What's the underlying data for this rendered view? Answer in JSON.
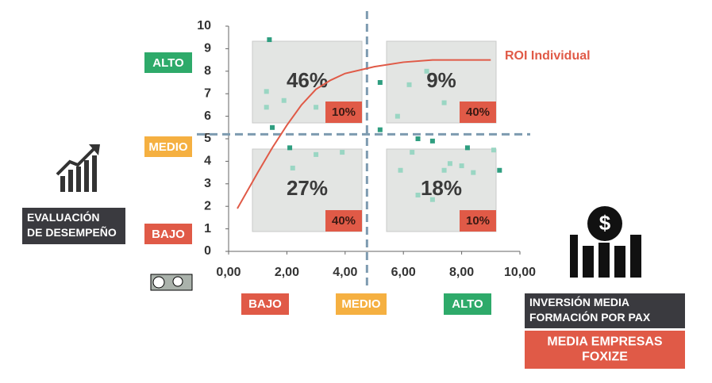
{
  "chart_data": {
    "type": "scatter",
    "xlim": [
      0,
      10
    ],
    "ylim": [
      0,
      10
    ],
    "xticks": [
      {
        "value": 0,
        "label": "0,00"
      },
      {
        "value": 2,
        "label": "2,00"
      },
      {
        "value": 4,
        "label": "4,00"
      },
      {
        "value": 6,
        "label": "6,00"
      },
      {
        "value": 8,
        "label": "8,00"
      },
      {
        "value": 10,
        "label": "10,00"
      }
    ],
    "yticks": [
      0,
      1,
      2,
      3,
      4,
      5,
      6,
      7,
      8,
      9,
      10
    ],
    "series": [
      {
        "color": "#2f9e80",
        "x": [
          1.4,
          1.5,
          2.1,
          5.2,
          5.2,
          6.5,
          7.0,
          8.2,
          9.3
        ],
        "values": [
          9.4,
          5.5,
          4.6,
          7.5,
          5.4,
          5.0,
          4.9,
          4.6,
          3.6
        ]
      },
      {
        "color": "#9ad6c3",
        "x": [
          1.3,
          1.3,
          1.9,
          3.0,
          2.2,
          3.0,
          3.9,
          5.8,
          6.2,
          6.8,
          7.4,
          6.3,
          5.9,
          6.5,
          7.0,
          7.4,
          7.6,
          8.0,
          8.4,
          9.1
        ],
        "values": [
          7.1,
          6.4,
          6.7,
          6.4,
          3.7,
          4.3,
          4.4,
          6.0,
          7.4,
          8.0,
          6.6,
          4.4,
          3.6,
          2.5,
          2.3,
          3.6,
          3.9,
          3.8,
          3.5,
          4.5
        ]
      }
    ],
    "curve": {
      "name": "ROI Individual",
      "color": "#e05a47",
      "x": [
        0.3,
        1,
        1.5,
        2,
        2.5,
        3,
        3.5,
        4,
        5,
        6,
        7,
        8,
        9
      ],
      "values": [
        1.9,
        3.5,
        4.6,
        5.6,
        6.5,
        7.2,
        7.6,
        7.9,
        8.2,
        8.4,
        8.5,
        8.5,
        8.5
      ]
    },
    "reference_lines": {
      "x": 4.75,
      "y": 5.2
    },
    "quadrants": [
      {
        "label": "46%",
        "sub": "10%"
      },
      {
        "label": "9%",
        "sub": "40%"
      },
      {
        "label": "27%",
        "sub": "40%"
      },
      {
        "label": "18%",
        "sub": "10%"
      }
    ],
    "y_levels": [
      "ALTO",
      "MEDIO",
      "BAJO"
    ],
    "x_levels": [
      "BAJO",
      "MEDIO",
      "ALTO"
    ],
    "y_caption": [
      "EVALUACIÓN",
      "DE DESEMPEÑO"
    ],
    "x_caption": [
      "INVERSIÓN MEDIA",
      "FORMACIÓN POR PAX"
    ],
    "benchmark": [
      "MEDIA EMPRESAS",
      "FOXIZE"
    ]
  }
}
